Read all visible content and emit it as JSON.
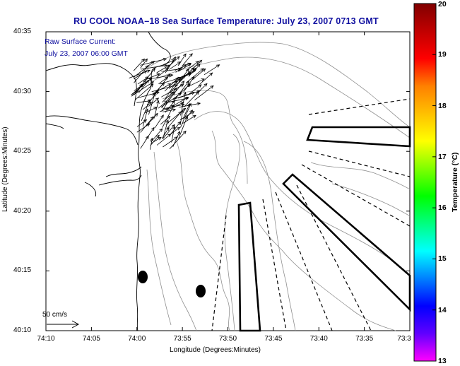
{
  "title": "RU COOL  NOAA–18  Sea Surface Temperature:  July 23, 2007 0713 GMT",
  "annotation": {
    "line1": "Raw Surface Current:",
    "line2": "July 23, 2007 06:00 GMT"
  },
  "scale_label": "50 cm/s",
  "axes": {
    "xlabel": "Longitude (Degrees:Minutes)",
    "ylabel": "Latitude (Degrees:Minutes)",
    "xticks": [
      "74:10",
      "74:05",
      "74:00",
      "73:55",
      "73:50",
      "73:45",
      "73:40",
      "73:35",
      "73:3"
    ],
    "yticks": [
      "40:35",
      "40:30",
      "40:25",
      "40:20",
      "40:15",
      "40:10"
    ]
  },
  "colorbar": {
    "label": "Temperature (°C)",
    "ticks": [
      "20",
      "19",
      "18",
      "17",
      "16",
      "15",
      "14",
      "13"
    ],
    "min": 13,
    "max": 20,
    "colors": [
      "#ff00ff",
      "#6000ff",
      "#0000ff",
      "#0080ff",
      "#00ffff",
      "#00ff80",
      "#00ff00",
      "#80ff00",
      "#ffff00",
      "#ffc000",
      "#ff8000",
      "#ff0000",
      "#c00000",
      "#800000"
    ]
  },
  "markers": [
    {
      "name": "buoy-marker-1",
      "lon": "74:01",
      "lat": "40:14.7"
    },
    {
      "name": "buoy-marker-2",
      "lon": "73:57.5",
      "lat": "40:13.5"
    }
  ]
}
